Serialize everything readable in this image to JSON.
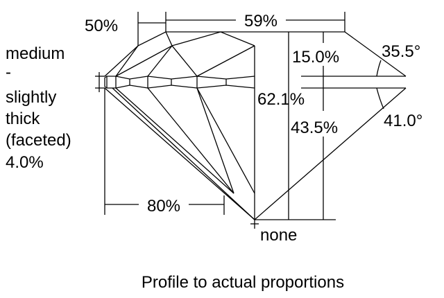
{
  "labels": {
    "crown_height": "15.0%",
    "crown_angle": "35.5°",
    "total_depth": "62.1%",
    "pavilion_depth": "43.5%",
    "pavilion_angle": "41.0°",
    "table": "59%",
    "star_length": "50%",
    "lower_half_length": "80%",
    "culet": "none",
    "girdle": [
      "medium",
      "-",
      "slightly",
      "thick",
      "(faceted)",
      "4.0%"
    ]
  },
  "caption": "Profile to actual proportions"
}
